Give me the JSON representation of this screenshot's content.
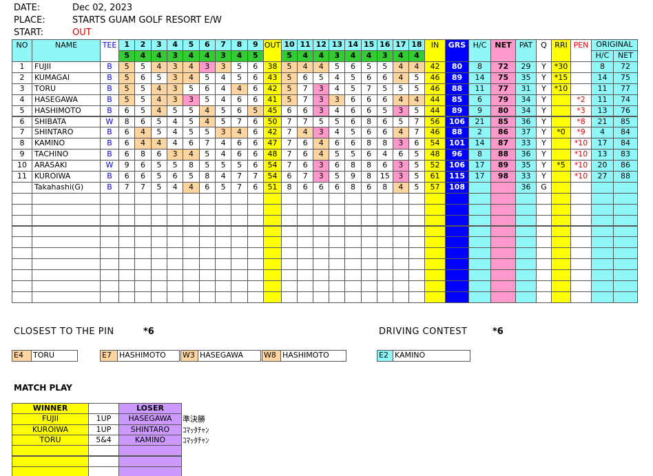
{
  "header": {
    "date_label": "DATE:",
    "date": "Dec 02, 2023",
    "place_label": "PLACE:",
    "place": "STARTS GUAM GOLF RESORT E/W",
    "start_label": "START:",
    "start": "OUT"
  },
  "scorecard": {
    "headers": {
      "no": "NO",
      "name": "NAME",
      "tee": "TEE",
      "out": "OUT",
      "in": "IN",
      "grs": "GRS",
      "hc": "H/C",
      "net": "NET",
      "pat": "PAT",
      "q": "Q",
      "rri": "RRI",
      "pen": "PEN",
      "original": "ORIGINAL",
      "orig_hc": "H/C",
      "orig_net": "NET"
    },
    "holes": [
      1,
      2,
      3,
      4,
      5,
      6,
      7,
      8,
      9,
      10,
      11,
      12,
      13,
      14,
      15,
      16,
      17,
      18
    ],
    "par": [
      5,
      4,
      4,
      3,
      4,
      4,
      3,
      4,
      5,
      5,
      4,
      4,
      3,
      4,
      4,
      3,
      4,
      4
    ],
    "players": [
      {
        "no": 1,
        "name": "FUJII",
        "tee": "B",
        "scores": [
          5,
          5,
          4,
          3,
          4,
          3,
          3,
          5,
          6,
          5,
          4,
          4,
          5,
          6,
          5,
          5,
          4,
          4
        ],
        "out": 38,
        "in": 42,
        "grs": 80,
        "hc": 8,
        "net": 72,
        "pat": 29,
        "q": "Y",
        "rri": "*30",
        "orig_hc": 8,
        "orig_net": 72
      },
      {
        "no": 2,
        "name": "KUMAGAI",
        "tee": "B",
        "scores": [
          5,
          6,
          5,
          3,
          4,
          5,
          4,
          5,
          6,
          5,
          6,
          5,
          4,
          5,
          6,
          6,
          4,
          5
        ],
        "out": 43,
        "in": 46,
        "grs": 89,
        "hc": 14,
        "net": 75,
        "pat": 35,
        "q": "Y",
        "rri": "*15",
        "orig_hc": 14,
        "orig_net": 75
      },
      {
        "no": 3,
        "name": "TORU",
        "tee": "B",
        "scores": [
          5,
          5,
          4,
          3,
          5,
          6,
          4,
          4,
          6,
          5,
          7,
          3,
          4,
          5,
          7,
          5,
          5,
          5
        ],
        "out": 42,
        "in": 46,
        "grs": 88,
        "hc": 11,
        "net": 77,
        "pat": 31,
        "q": "Y",
        "rri": "*10",
        "orig_hc": 11,
        "orig_net": 77
      },
      {
        "no": 4,
        "name": "HASEGAWA",
        "tee": "B",
        "scores": [
          5,
          5,
          4,
          3,
          3,
          5,
          4,
          6,
          6,
          5,
          7,
          3,
          3,
          6,
          6,
          6,
          4,
          4
        ],
        "out": 41,
        "in": 44,
        "grs": 85,
        "hc": 6,
        "net": 79,
        "pat": 34,
        "q": "Y",
        "pen": "*2",
        "orig_hc": 11,
        "orig_net": 74
      },
      {
        "no": 5,
        "name": "HASHIMOTO",
        "tee": "B",
        "scores": [
          6,
          5,
          4,
          5,
          5,
          4,
          5,
          6,
          5,
          6,
          6,
          3,
          4,
          6,
          6,
          5,
          3,
          5
        ],
        "out": 45,
        "in": 44,
        "grs": 89,
        "hc": 9,
        "net": 80,
        "pat": 34,
        "q": "Y",
        "pen": "*3",
        "orig_hc": 13,
        "orig_net": 76
      },
      {
        "no": 6,
        "name": "SHIBATA",
        "tee": "W",
        "scores": [
          8,
          6,
          5,
          4,
          5,
          4,
          5,
          7,
          6,
          7,
          7,
          5,
          5,
          6,
          8,
          6,
          5,
          7
        ],
        "out": 50,
        "in": 56,
        "grs": 106,
        "hc": 21,
        "net": 85,
        "pat": 36,
        "q": "Y",
        "pen": "*8",
        "orig_hc": 21,
        "orig_net": 85
      },
      {
        "no": 7,
        "name": "SHINTARO",
        "tee": "B",
        "scores": [
          6,
          4,
          5,
          4,
          5,
          5,
          3,
          4,
          6,
          7,
          4,
          3,
          4,
          5,
          6,
          6,
          4,
          7
        ],
        "out": 42,
        "in": 46,
        "grs": 88,
        "hc": 2,
        "net": 86,
        "pat": 37,
        "q": "Y",
        "rri": "*0",
        "pen": "*9",
        "orig_hc": 4,
        "orig_net": 84
      },
      {
        "no": 8,
        "name": "KAMINO",
        "tee": "B",
        "scores": [
          6,
          4,
          4,
          4,
          6,
          7,
          4,
          6,
          6,
          7,
          6,
          4,
          6,
          6,
          8,
          8,
          3,
          6
        ],
        "out": 47,
        "in": 54,
        "grs": 101,
        "hc": 14,
        "net": 87,
        "pat": 33,
        "q": "Y",
        "pen": "*10",
        "orig_hc": 17,
        "orig_net": 84
      },
      {
        "no": 9,
        "name": "TACHINO",
        "tee": "B",
        "scores": [
          6,
          8,
          6,
          3,
          4,
          5,
          4,
          6,
          6,
          7,
          6,
          4,
          5,
          5,
          6,
          4,
          6,
          5
        ],
        "out": 48,
        "in": 48,
        "grs": 96,
        "hc": 8,
        "net": 88,
        "pat": 36,
        "q": "Y",
        "pen": "*10",
        "orig_hc": 13,
        "orig_net": 83
      },
      {
        "no": 10,
        "name": "ARASAKI",
        "tee": "W",
        "scores": [
          9,
          6,
          5,
          5,
          8,
          5,
          5,
          5,
          6,
          7,
          6,
          3,
          6,
          8,
          8,
          6,
          3,
          5
        ],
        "out": 54,
        "in": 52,
        "grs": 106,
        "hc": 17,
        "net": 89,
        "pat": 35,
        "q": "Y",
        "rri": "*5",
        "pen": "*10",
        "orig_hc": 20,
        "orig_net": 86
      },
      {
        "no": 11,
        "name": "KUROIWA",
        "tee": "B",
        "scores": [
          6,
          6,
          5,
          6,
          5,
          8,
          4,
          7,
          7,
          6,
          7,
          3,
          5,
          9,
          8,
          15,
          3,
          5
        ],
        "out": 54,
        "in": 61,
        "grs": 115,
        "hc": 17,
        "net": 98,
        "pat": 33,
        "q": "Y",
        "pen": "*10",
        "orig_hc": 27,
        "orig_net": 88
      },
      {
        "name": "Takahashi(G)",
        "tee": "B",
        "scores": [
          7,
          7,
          5,
          4,
          4,
          6,
          5,
          7,
          6,
          8,
          6,
          6,
          6,
          8,
          6,
          8,
          4,
          5
        ],
        "out": 51,
        "in": 57,
        "grs": 108,
        "pat": 36,
        "q": "G"
      }
    ]
  },
  "closest_to_pin": {
    "title": "CLOSEST TO THE PIN",
    "count": "*6",
    "entries": [
      {
        "hole": "E4",
        "name": "TORU"
      },
      {
        "hole": "E7",
        "name": "HASHIMOTO"
      },
      {
        "hole": "W3",
        "name": "HASEGAWA"
      },
      {
        "hole": "W8",
        "name": "HASHIMOTO"
      }
    ]
  },
  "driving_contest": {
    "title": "DRIVING CONTEST",
    "count": "*6",
    "entries": [
      {
        "hole": "E2",
        "name": "KAMINO"
      }
    ]
  },
  "match_play": {
    "title": "MATCH PLAY",
    "winner_header": "WINNER",
    "loser_header": "LOSER",
    "rows": [
      {
        "winner": "FUJII",
        "result": "1UP",
        "loser": "HASEGAWA",
        "note": "準決勝"
      },
      {
        "winner": "KUROIWA",
        "result": "1UP",
        "loser": "SHINTARO",
        "note": "ｺﾏｯﾀﾁｬﾝ"
      },
      {
        "winner": "TORU",
        "result": "5&4",
        "loser": "KAMINO",
        "note": "ｺﾏｯﾀﾁｬﾝ"
      }
    ]
  }
}
